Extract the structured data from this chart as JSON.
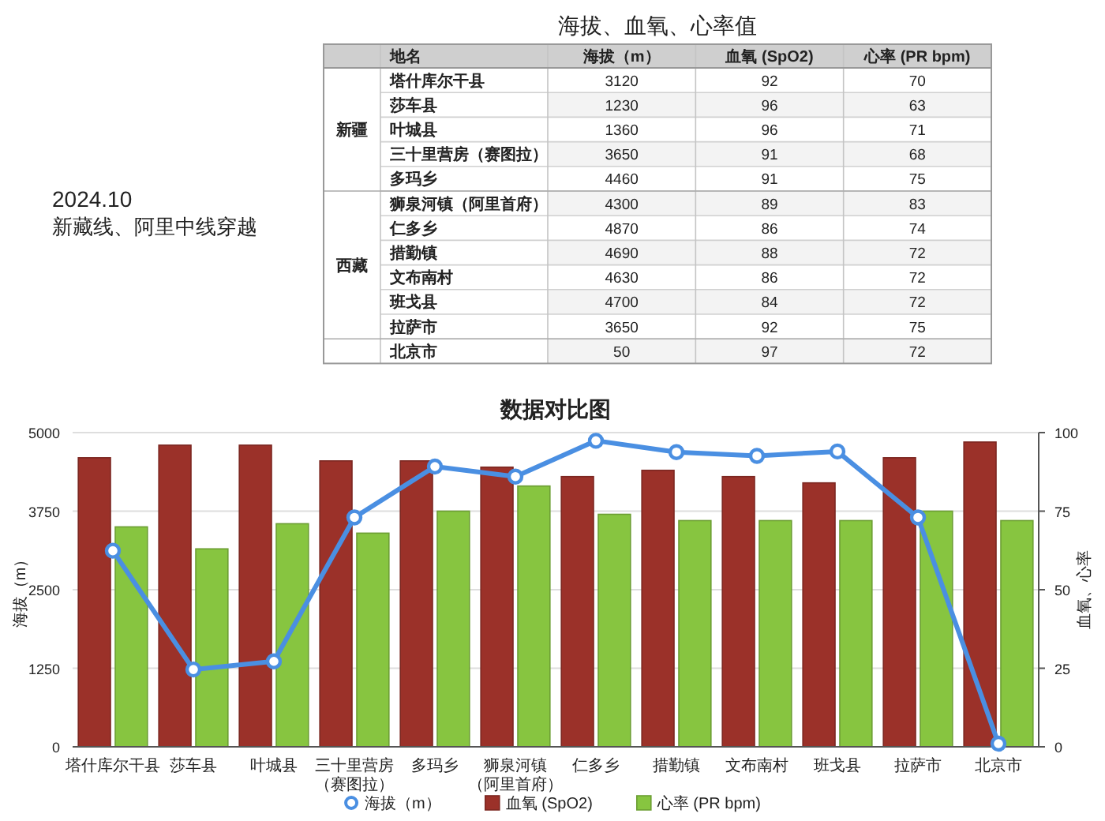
{
  "chart_data": [
    {
      "type": "other",
      "title": "海拔、血氧、心率值",
      "categories": [
        "塔什库尔干县",
        "莎车县",
        "叶城县",
        "三十里营房（赛图拉）",
        "多玛乡",
        "狮泉河镇（阿里首府）",
        "仁多乡",
        "措勤镇",
        "文布南村",
        "班戈县",
        "拉萨市",
        "北京市"
      ],
      "series": [
        {
          "name": "海拔（m）",
          "values": [
            3120,
            1230,
            1360,
            3650,
            4460,
            4300,
            4870,
            4690,
            4630,
            4700,
            3650,
            50
          ]
        },
        {
          "name": "血氧 (SpO2)",
          "values": [
            92,
            96,
            96,
            91,
            91,
            89,
            86,
            88,
            86,
            84,
            92,
            97
          ]
        },
        {
          "name": "心率 (PR bpm)",
          "values": [
            70,
            63,
            71,
            68,
            75,
            83,
            74,
            72,
            72,
            72,
            75,
            72
          ]
        }
      ],
      "data_labels": true,
      "annotations": [
        "2024.10",
        "新藏线、阿里中线穿越",
        "地名",
        "新疆",
        "西藏"
      ]
    },
    {
      "type": "bar",
      "title": "数据对比图",
      "categories": [
        "塔什库尔干县",
        "莎车县",
        "叶城县",
        "三十里营房（赛图拉）",
        "多玛乡",
        "狮泉河镇（阿里首府）",
        "仁多乡",
        "措勤镇",
        "文布南村",
        "班戈县",
        "拉萨市",
        "北京市"
      ],
      "series": [
        {
          "name": "海拔（m）",
          "type": "line",
          "color": "#4a8fe2",
          "values": [
            3120,
            1230,
            1360,
            3650,
            4460,
            4300,
            4870,
            4690,
            4630,
            4700,
            3650,
            50
          ]
        },
        {
          "name": "血氧 (SpO2)",
          "color": "#9b3129",
          "axis": "y2",
          "values": [
            92,
            96,
            96,
            91,
            91,
            89,
            86,
            88,
            86,
            84,
            92,
            97
          ]
        },
        {
          "name": "心率 (PR bpm)",
          "color": "#87c540",
          "axis": "y2",
          "values": [
            70,
            63,
            71,
            68,
            75,
            83,
            74,
            72,
            72,
            72,
            75,
            72
          ]
        }
      ],
      "ylabel": "海拔（m）",
      "y2label": "血氧、心率",
      "ylim": [
        0,
        5000
      ],
      "yticks": [
        0,
        1250,
        2500,
        3750,
        5000
      ],
      "y2lim": [
        0,
        100
      ],
      "y2ticks": [
        0,
        25,
        50,
        75,
        100
      ],
      "grid": "y",
      "legend": "bottom",
      "marker": "circle"
    }
  ]
}
